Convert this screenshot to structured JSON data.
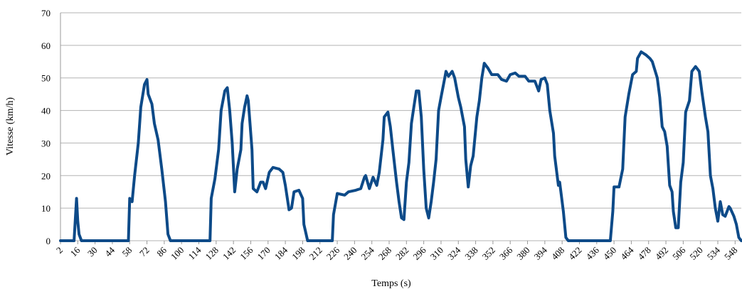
{
  "chart_data": {
    "type": "line",
    "xlabel": "Temps (s)",
    "ylabel": "Vitesse (km/h)",
    "x": [
      2,
      13,
      15,
      16,
      17,
      19,
      57,
      58,
      60,
      62,
      65,
      67,
      70,
      72,
      73,
      76,
      78,
      81,
      84,
      87,
      89,
      91,
      123,
      124,
      127,
      130,
      132,
      135,
      137,
      139,
      141,
      143,
      145,
      148,
      149,
      151,
      153,
      154,
      157,
      158,
      161,
      164,
      166,
      168,
      171,
      174,
      179,
      182,
      184,
      187,
      189,
      191,
      195,
      198,
      199,
      202,
      222,
      223,
      226,
      232,
      235,
      241,
      245,
      248,
      249,
      252,
      255,
      258,
      260,
      263,
      264,
      267,
      269,
      271,
      274,
      276,
      278,
      280,
      282,
      284,
      286,
      288,
      290,
      292,
      294,
      296,
      298,
      300,
      302,
      304,
      306,
      308,
      310,
      313,
      314,
      316,
      319,
      321,
      324,
      326,
      329,
      330,
      332,
      334,
      336,
      339,
      341,
      343,
      345,
      348,
      351,
      356,
      359,
      363,
      366,
      370,
      373,
      378,
      381,
      386,
      389,
      391,
      394,
      396,
      398,
      401,
      402,
      405,
      406,
      409,
      411,
      413,
      447,
      449,
      450,
      454,
      457,
      459,
      462,
      465,
      468,
      469,
      472,
      476,
      479,
      481,
      485,
      487,
      489,
      491,
      493,
      495,
      497,
      498,
      500,
      502,
      504,
      506,
      508,
      511,
      513,
      516,
      519,
      521,
      524,
      526,
      528,
      530,
      532,
      534,
      536,
      538,
      540,
      543,
      544,
      547,
      549,
      551,
      553
    ],
    "series": [
      {
        "name": "Vitesse",
        "color": "#0d4a88",
        "values": [
          0,
          0,
          13,
          6,
          2,
          0,
          0,
          13,
          12,
          20,
          30,
          41,
          48,
          49.5,
          45,
          42,
          36,
          31,
          22,
          12,
          2,
          0,
          0,
          13,
          19,
          28,
          40,
          46,
          47,
          40,
          30,
          15,
          22,
          28,
          36,
          41,
          44.5,
          43,
          28,
          16,
          15,
          18,
          18,
          16,
          21,
          22.5,
          22,
          21,
          17,
          9.5,
          10,
          15,
          15.5,
          13,
          5,
          0,
          0,
          8,
          14.5,
          14,
          15,
          15.5,
          16,
          19.5,
          20,
          16,
          19.5,
          17,
          21,
          31,
          38,
          39.5,
          35,
          28,
          18,
          12,
          7,
          6.5,
          18,
          24,
          36,
          41,
          46,
          46,
          38,
          22,
          10,
          7,
          12,
          18,
          25,
          40,
          44,
          50,
          52,
          50.5,
          52,
          50,
          44,
          41,
          35,
          25,
          16.5,
          23,
          26,
          38,
          43,
          50,
          54.5,
          53,
          51,
          51,
          49.5,
          49,
          51,
          51.5,
          50.5,
          50.5,
          49,
          49,
          46,
          49.5,
          50,
          48,
          40,
          33,
          26,
          17,
          18,
          9,
          1,
          0,
          0,
          9,
          16.5,
          16.5,
          22,
          38,
          45,
          51,
          52,
          56,
          58,
          57,
          56,
          55,
          50,
          44,
          35,
          33.5,
          29,
          17,
          15,
          9,
          4,
          4,
          18,
          24,
          39.5,
          43,
          52,
          53.5,
          52,
          46,
          38,
          33.5,
          20,
          16,
          10,
          6,
          12,
          8,
          7.5,
          10.5,
          10,
          7.5,
          5,
          1,
          0
        ]
      }
    ],
    "xlim": [
      2,
      553
    ],
    "xticks": [
      2,
      16,
      30,
      44,
      58,
      72,
      86,
      100,
      114,
      128,
      142,
      156,
      170,
      184,
      198,
      212,
      226,
      240,
      254,
      268,
      282,
      296,
      310,
      324,
      338,
      352,
      366,
      380,
      394,
      408,
      422,
      436,
      450,
      464,
      478,
      492,
      506,
      520,
      534,
      548
    ],
    "ylim": [
      0,
      70
    ],
    "yticks": [
      0,
      10,
      20,
      30,
      40,
      50,
      60,
      70
    ],
    "grid": true
  }
}
